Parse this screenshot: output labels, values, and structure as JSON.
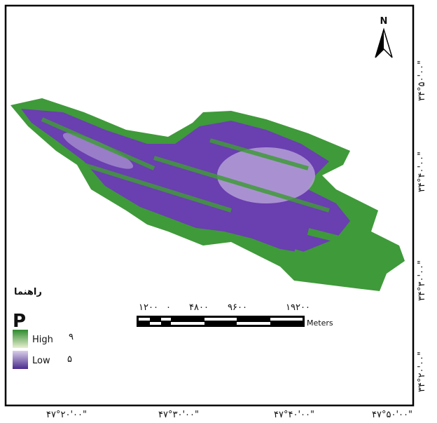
{
  "map": {
    "north": "N"
  },
  "legend": {
    "title": "راهنما",
    "field": "P",
    "items": [
      {
        "label": "High",
        "value_label": "۹"
      },
      {
        "label": "Low",
        "value_label": "۵"
      }
    ]
  },
  "scale_bar": {
    "labels": [
      "۱۲۰۰",
      "۰",
      "۴۸۰۰",
      "۹۶۰۰",
      "۱۹۲۰۰"
    ],
    "unit": "Meters"
  },
  "axes": {
    "x_labels": [
      "۴۷°۲۰'۰۰\"",
      "۴۷°۳۰'۰۰\"",
      "۴۷°۴۰'۰۰\"",
      "۴۷°۵۰'۰۰\""
    ],
    "y_labels": [
      "۳۴°۵۰'۰۰\"",
      "۳۴°۴۰'۰۰\"",
      "۳۴°۳۰'۰۰\"",
      "۳۴°۲۰'۰۰\""
    ]
  }
}
